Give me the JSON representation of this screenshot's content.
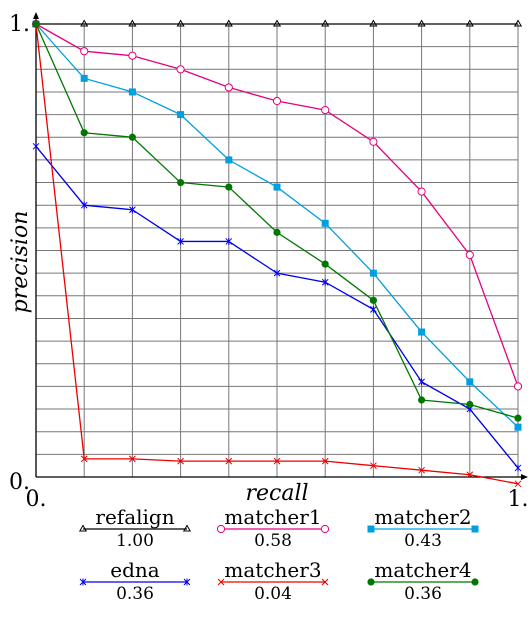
{
  "chart_data": {
    "type": "line",
    "xlabel": "recall",
    "ylabel": "precision",
    "x_ticks": [
      "0.",
      "1."
    ],
    "y_ticks": [
      "0.",
      "1."
    ],
    "xlim": [
      0,
      1
    ],
    "ylim": [
      0,
      1
    ],
    "grid": true,
    "legend_position": "bottom",
    "x": [
      0,
      0.1,
      0.2,
      0.3,
      0.4,
      0.5,
      0.6,
      0.7,
      0.8,
      0.9,
      1.0
    ],
    "series": [
      {
        "name": "refalign",
        "score": "1.00",
        "color": "#000000",
        "marker": "triangle",
        "values": [
          1.0,
          1.0,
          1.0,
          1.0,
          1.0,
          1.0,
          1.0,
          1.0,
          1.0,
          1.0,
          1.0
        ]
      },
      {
        "name": "matcher1",
        "score": "0.58",
        "color": "#e6007e",
        "marker": "circle",
        "values": [
          1.0,
          0.94,
          0.93,
          0.9,
          0.86,
          0.83,
          0.81,
          0.74,
          0.63,
          0.49,
          0.2
        ]
      },
      {
        "name": "matcher2",
        "score": "0.43",
        "color": "#00a0e0",
        "marker": "square",
        "values": [
          1.0,
          0.88,
          0.85,
          0.8,
          0.7,
          0.64,
          0.56,
          0.45,
          0.32,
          0.21,
          0.11
        ]
      },
      {
        "name": "edna",
        "score": "0.36",
        "color": "#0000ee",
        "marker": "star",
        "values": [
          0.73,
          0.6,
          0.59,
          0.52,
          0.52,
          0.45,
          0.43,
          0.37,
          0.21,
          0.15,
          0.02
        ]
      },
      {
        "name": "matcher3",
        "score": "0.04",
        "color": "#ee0000",
        "marker": "x",
        "values": [
          1.0,
          0.04,
          0.04,
          0.035,
          0.035,
          0.035,
          0.035,
          0.025,
          0.015,
          0.005,
          -0.015
        ]
      },
      {
        "name": "matcher4",
        "score": "0.36",
        "color": "#007700",
        "marker": "dot",
        "values": [
          1.0,
          0.76,
          0.75,
          0.65,
          0.64,
          0.54,
          0.47,
          0.39,
          0.17,
          0.16,
          0.13
        ]
      }
    ]
  }
}
